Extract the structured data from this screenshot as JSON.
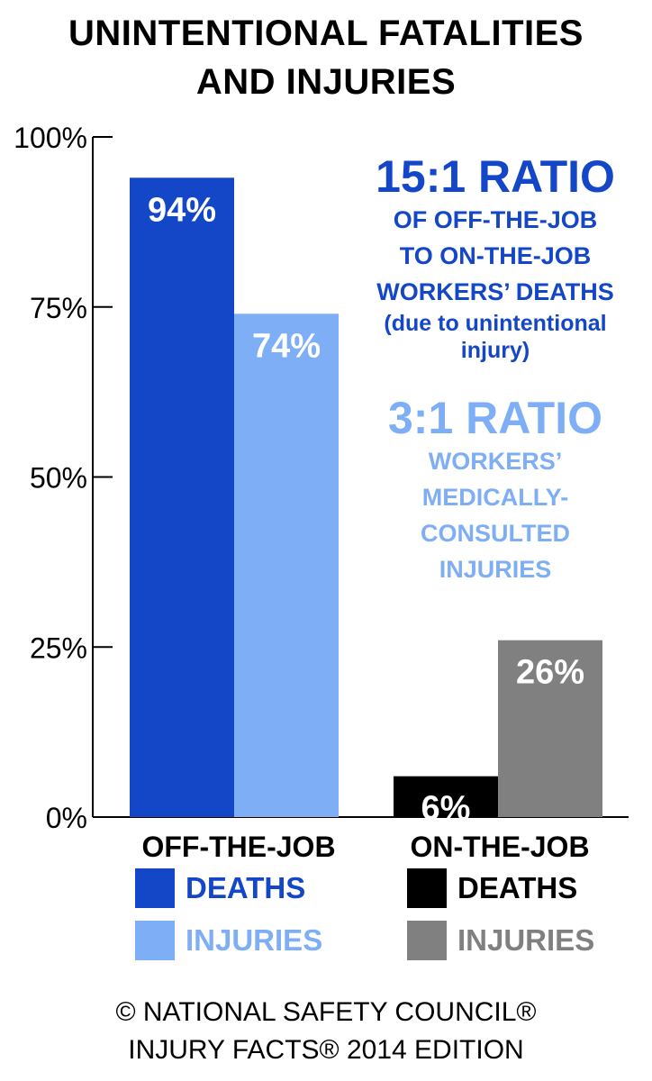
{
  "header": {
    "title_line1": "UNINTENTIONAL FATALITIES",
    "title_line2": "AND INJURIES"
  },
  "annotations": {
    "deaths_ratio": "15:1 RATIO",
    "deaths_line1": "OF OFF-THE-JOB",
    "deaths_line2": "TO ON-THE-JOB",
    "deaths_line3": "WORKERS’ DEATHS",
    "deaths_line4": "(due to unintentional",
    "deaths_line5": "injury)",
    "injuries_ratio": "3:1 RATIO",
    "injuries_line1": "WORKERS’",
    "injuries_line2": "MEDICALLY-",
    "injuries_line3": "CONSULTED",
    "injuries_line4": "INJURIES"
  },
  "legend": {
    "off_deaths": "DEATHS",
    "off_injuries": "INJURIES",
    "on_deaths": "DEATHS",
    "on_injuries": "INJURIES"
  },
  "footer": {
    "line1": "© NATIONAL SAFETY COUNCIL®",
    "line2": "INJURY FACTS® 2014 EDITION"
  },
  "colors": {
    "off_deaths": "#1446c8",
    "off_injuries": "#7eaef5",
    "on_deaths": "#000000",
    "on_injuries": "#808080"
  },
  "chart_data": {
    "type": "bar",
    "title": "UNINTENTIONAL FATALITIES AND INJURIES",
    "categories": [
      "OFF-THE-JOB",
      "ON-THE-JOB"
    ],
    "series": [
      {
        "name": "DEATHS",
        "values": [
          94,
          6
        ],
        "labels": [
          "94%",
          "6%"
        ],
        "colors": [
          "#1446c8",
          "#000000"
        ]
      },
      {
        "name": "INJURIES",
        "values": [
          74,
          26
        ],
        "labels": [
          "74%",
          "26%"
        ],
        "colors": [
          "#7eaef5",
          "#808080"
        ]
      }
    ],
    "ylim": [
      0,
      100
    ],
    "yticks": [
      0,
      25,
      50,
      75,
      100
    ],
    "ytick_labels": [
      "0%",
      "25%",
      "50%",
      "75%",
      "100%"
    ],
    "grid": false
  }
}
